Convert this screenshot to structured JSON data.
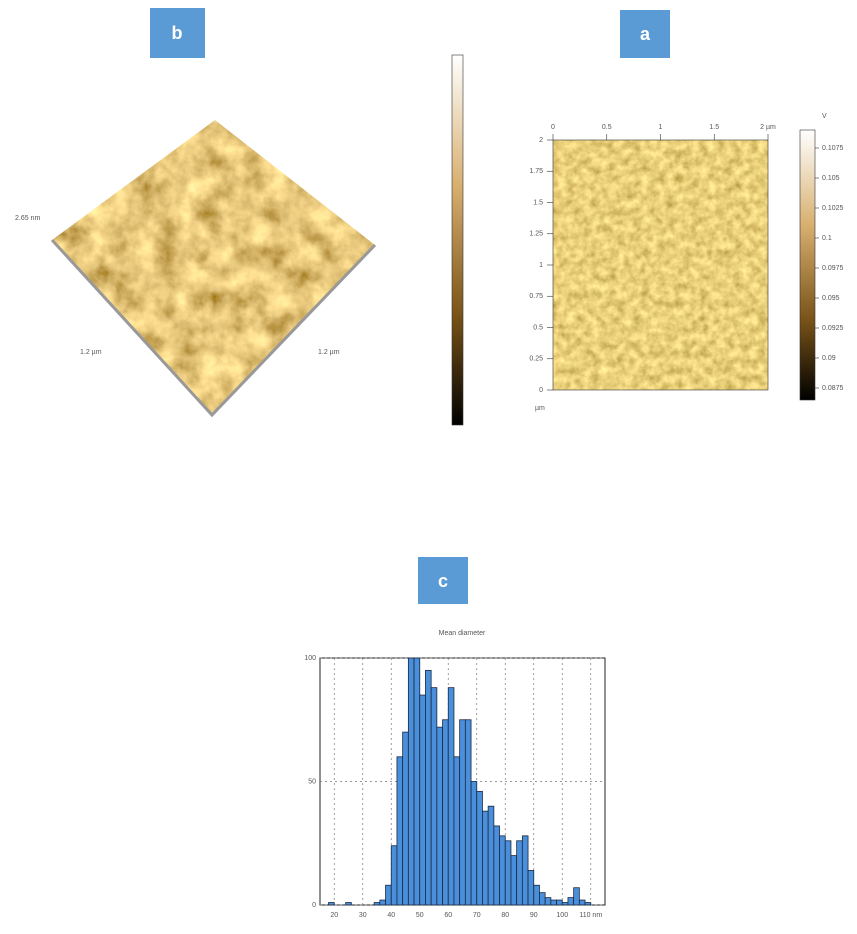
{
  "panels": {
    "b": "b",
    "a": "a",
    "c": "c"
  },
  "afm_3d": {
    "z_label": "2.65 nm",
    "x_label": "1.2 µm",
    "y_label": "1.2 µm"
  },
  "afm_2d": {
    "xticks": [
      0,
      0.5,
      1,
      1.5,
      {
        "value": 2,
        "label": "2 µm"
      }
    ],
    "yticks": [
      0,
      0.25,
      0.5,
      0.75,
      1,
      1.25,
      1.5,
      1.75,
      2
    ],
    "ylim": [
      0,
      2
    ],
    "xlim": [
      0,
      2
    ],
    "y_unit": "µm",
    "colorbar": {
      "unit": "V",
      "lim": [
        0.0865,
        0.109
      ],
      "ticks": [
        0.0875,
        0.09,
        0.0925,
        0.095,
        0.0975,
        0.1,
        0.1025,
        0.105,
        0.1075
      ]
    }
  },
  "chart_data": {
    "type": "histogram",
    "title": "Mean diameter",
    "color": "#4a8fdb",
    "bins": [
      16,
      18,
      20,
      22,
      24,
      26,
      28,
      30,
      32,
      34,
      36,
      38,
      40,
      42,
      44,
      46,
      48,
      50,
      52,
      54,
      56,
      58,
      60,
      62,
      64,
      66,
      68,
      70,
      72,
      74,
      76,
      78,
      80,
      82,
      84,
      86,
      88,
      90,
      92,
      94,
      96,
      98,
      100,
      102,
      104,
      106,
      108,
      110,
      112,
      114
    ],
    "values": [
      0,
      1,
      0,
      0,
      1,
      0,
      0,
      0,
      0,
      1,
      2,
      8,
      24,
      60,
      70,
      100,
      100,
      85,
      95,
      88,
      72,
      75,
      88,
      60,
      75,
      75,
      50,
      46,
      38,
      40,
      32,
      28,
      26,
      20,
      26,
      28,
      14,
      8,
      5,
      3,
      2,
      2,
      1,
      3,
      7,
      2,
      1,
      0,
      0
    ],
    "xlim": [
      15,
      115
    ],
    "xticks": [
      20,
      30,
      40,
      50,
      60,
      70,
      80,
      90,
      100,
      {
        "value": 110,
        "label": "110 nm"
      }
    ],
    "ylim": [
      0,
      100
    ],
    "yticks": [
      0,
      50,
      100
    ],
    "grid": true
  }
}
